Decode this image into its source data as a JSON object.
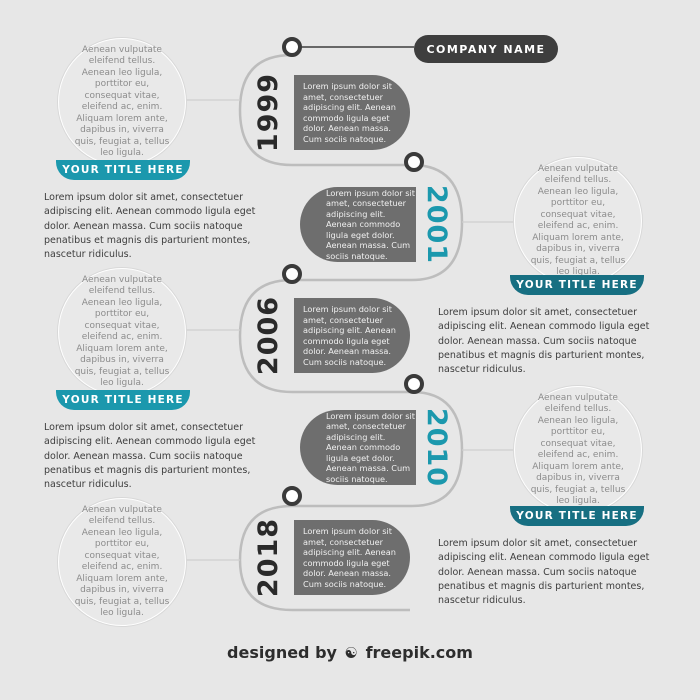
{
  "company": {
    "name": "COMPANY NAME"
  },
  "circle_text": "Aenean vulputate eleifend tellus. Aenean leo ligula, porttitor eu, consequat vitae, eleifend ac, enim. Aliquam lorem ante, dapibus in, viverra quis, feugiat a, tellus leo ligula.",
  "ribbon_title": "YOUR TITLE HERE",
  "paragraph_text": "Lorem ipsum dolor sit amet, consectetuer adipiscing elit. Aenean commodo ligula eget dolor. Aenean massa. Cum sociis natoque penatibus et magnis dis parturient montes, nascetur ridiculus.",
  "pill_text": "Lorem ipsum dolor sit amet, consectetuer adipiscing elit. Aenean commodo ligula eget dolor. Aenean massa. Cum sociis natoque.",
  "milestones": [
    {
      "year": "1999"
    },
    {
      "year": "2001"
    },
    {
      "year": "2006"
    },
    {
      "year": "2010"
    },
    {
      "year": "2018"
    }
  ],
  "footer": {
    "prefix": "designed by",
    "brand": "freepik.com"
  },
  "colors": {
    "teal": "#1b98ad",
    "dark_teal": "#176f82",
    "pill_gray": "#6e6e6e",
    "dark": "#3e3e3e",
    "background": "#e7e7e7"
  }
}
